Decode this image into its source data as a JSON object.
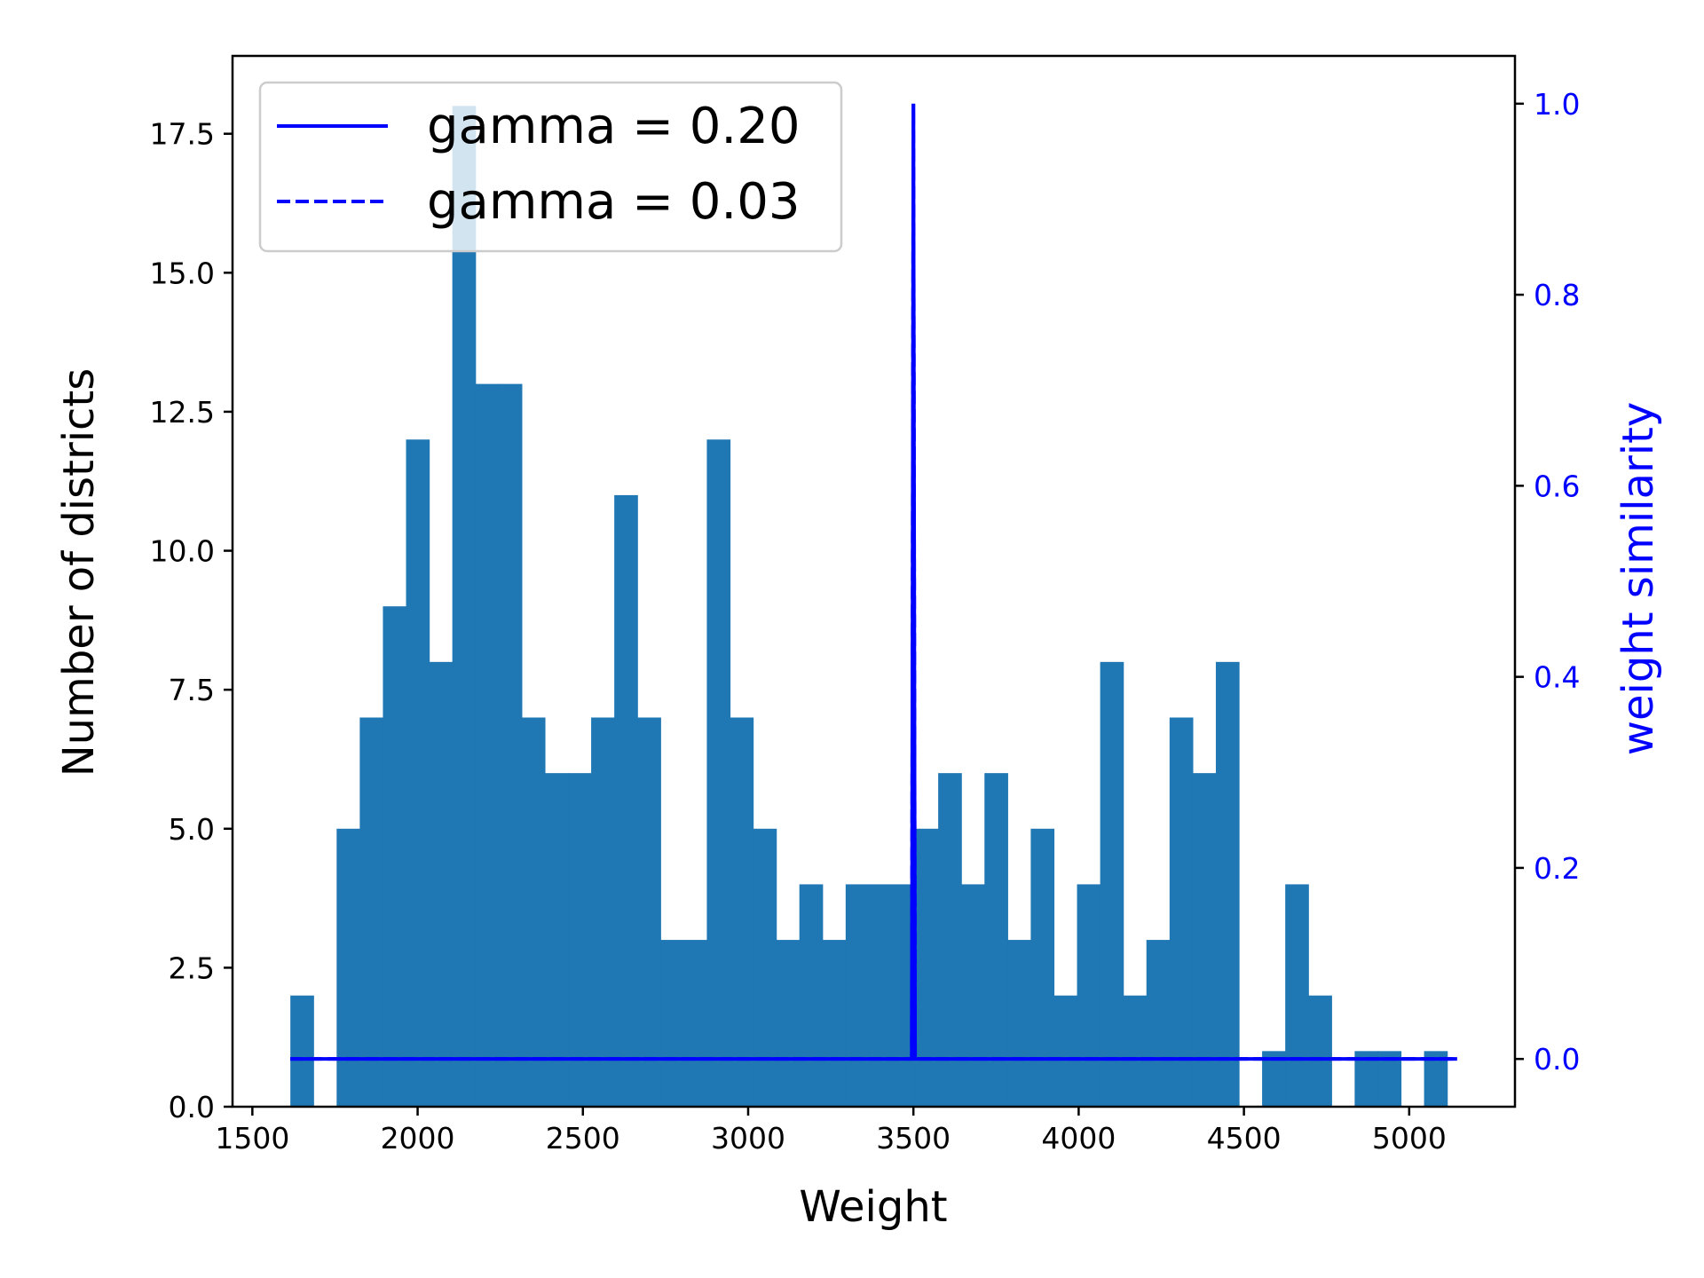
{
  "chart_data": {
    "type": "bar",
    "title": "",
    "xlabel": "Weight",
    "ylabel": "Number of districts",
    "y2label": "weight similarity",
    "xlim": [
      1440,
      5320
    ],
    "ylim": [
      0,
      18.9
    ],
    "y2lim": [
      -0.05,
      1.05
    ],
    "x_ticks": [
      "1500",
      "2000",
      "2500",
      "3000",
      "3500",
      "4000",
      "4500",
      "5000"
    ],
    "y_ticks": [
      "0.0",
      "2.5",
      "5.0",
      "7.5",
      "10.0",
      "12.5",
      "15.0",
      "17.5"
    ],
    "y2_ticks": [
      "0.0",
      "0.2",
      "0.4",
      "0.6",
      "0.8",
      "1.0"
    ],
    "histogram": {
      "bin_start": 1615,
      "bin_width": 70,
      "counts": [
        2,
        0,
        5,
        7,
        9,
        12,
        8,
        18,
        13,
        13,
        7,
        6,
        6,
        7,
        11,
        7,
        3,
        3,
        12,
        7,
        5,
        3,
        4,
        3,
        4,
        4,
        4,
        5,
        6,
        4,
        6,
        3,
        5,
        2,
        4,
        8,
        2,
        3,
        7,
        6,
        8,
        0,
        1,
        4,
        2,
        0,
        1,
        1,
        0,
        1
      ],
      "color": "#1f77b4"
    },
    "series": [
      {
        "name": "gamma = 0.20",
        "style": "solid",
        "color": "#0000ff",
        "x": [
          1615,
          3495,
          3500,
          3505,
          5145
        ],
        "y": [
          0.0,
          0.0,
          1.0,
          0.0,
          0.0
        ]
      },
      {
        "name": "gamma = 0.03",
        "style": "dashed",
        "color": "#0000ff",
        "x": [
          1615,
          3495,
          3500,
          3505,
          5145
        ],
        "y": [
          0.0,
          0.0,
          1.0,
          0.0,
          0.0
        ]
      }
    ],
    "legend": {
      "position": "top-left"
    },
    "grid": false,
    "right_axis_color": "#0000ff"
  }
}
